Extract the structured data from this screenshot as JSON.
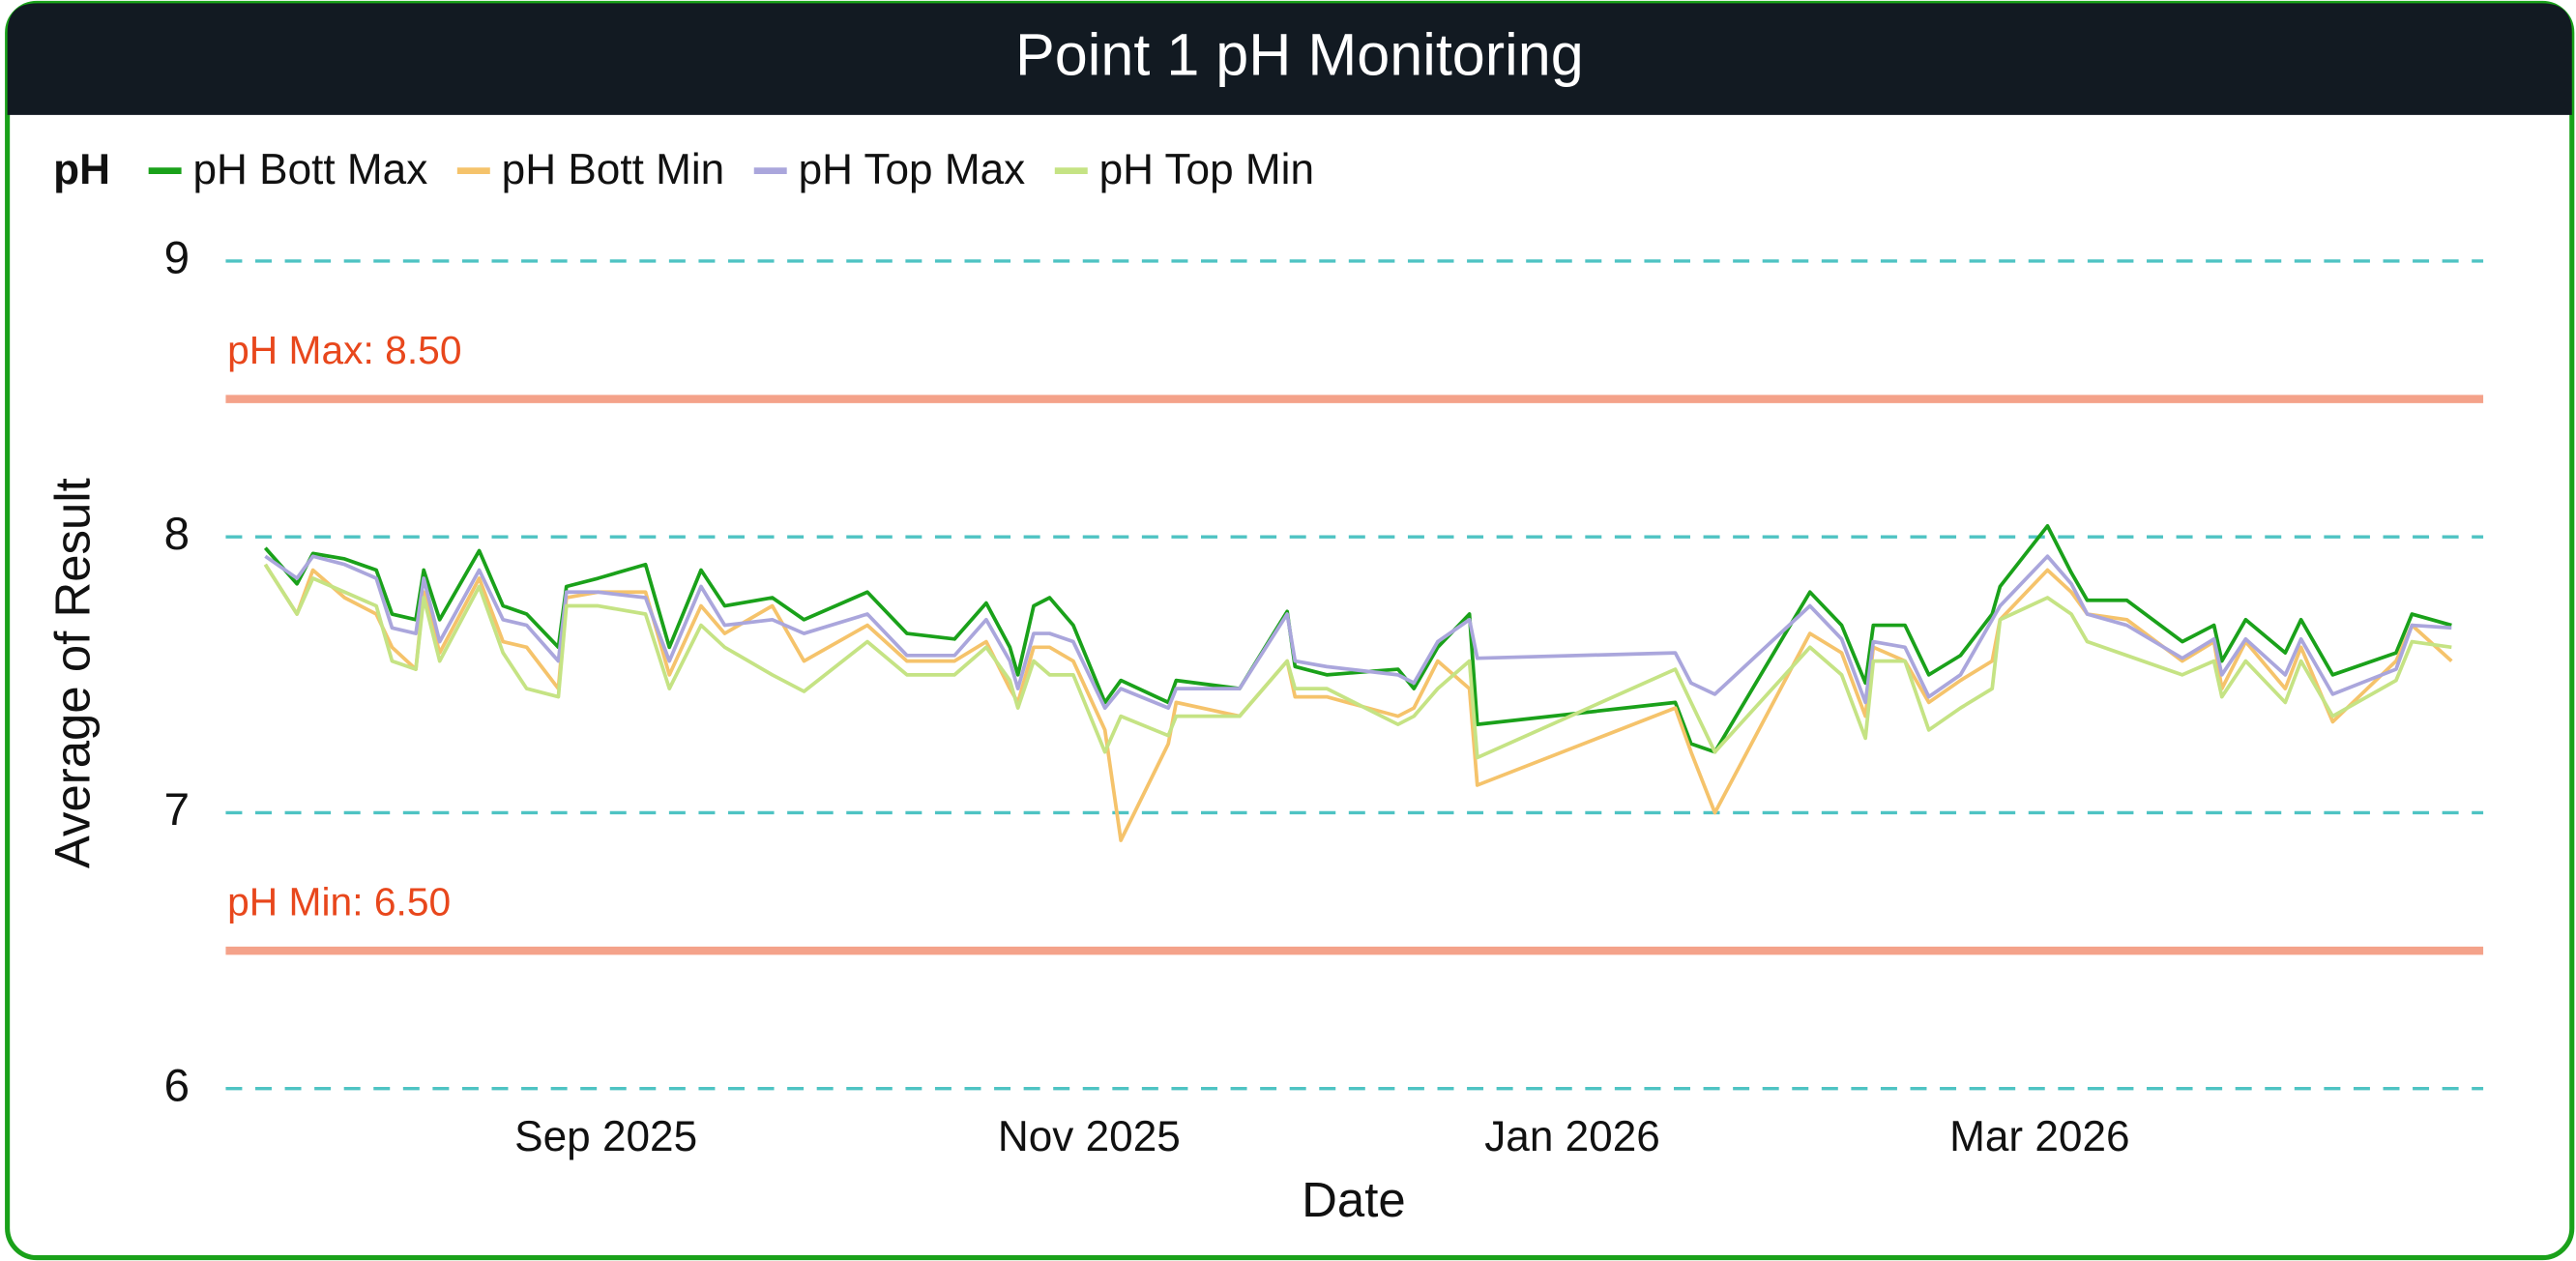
{
  "chart_data": {
    "type": "line",
    "title": "Point 1 pH Monitoring",
    "legend_title": "pH",
    "x_label": "Date",
    "y_label": "Average of Result",
    "xlim": [
      -48,
      237
    ],
    "xticks": [
      {
        "value": 0,
        "label": "Sep 2025"
      },
      {
        "value": 61,
        "label": "Nov 2025"
      },
      {
        "value": 122,
        "label": "Jan 2026"
      },
      {
        "value": 181,
        "label": "Mar 2026"
      }
    ],
    "ylim": [
      6,
      9
    ],
    "yticks": [
      6,
      7,
      8,
      9
    ],
    "grid": true,
    "reference_lines": [
      {
        "label": "pH Max: 8.50",
        "value": 8.5,
        "color": "#f4a28a"
      },
      {
        "label": "pH Min: 6.50",
        "value": 6.5,
        "color": "#f4a28a"
      }
    ],
    "x": [
      -43,
      -39,
      -37,
      -33,
      -29,
      -27,
      -24,
      -23,
      -21,
      -16,
      -13,
      -10,
      -6,
      -5,
      -1,
      5,
      8,
      12,
      15,
      21,
      25,
      33,
      38,
      44,
      48,
      51,
      52,
      54,
      56,
      59,
      63,
      65,
      71,
      72,
      80,
      86,
      87,
      91,
      100,
      102,
      105,
      109,
      110,
      135,
      137,
      140,
      152,
      156,
      159,
      160,
      164,
      167,
      171,
      175,
      176,
      182,
      185,
      187,
      192,
      199,
      203,
      204,
      207,
      212,
      214,
      218,
      226,
      228,
      233
    ],
    "series": [
      {
        "name": "pH Bott Max",
        "color": "#1aa11a",
        "values": [
          7.96,
          7.83,
          7.94,
          7.92,
          7.88,
          7.72,
          7.7,
          7.88,
          7.7,
          7.95,
          7.75,
          7.72,
          7.6,
          7.82,
          7.85,
          7.9,
          7.6,
          7.88,
          7.75,
          7.78,
          7.7,
          7.8,
          7.65,
          7.63,
          7.76,
          7.6,
          7.5,
          7.75,
          7.78,
          7.68,
          7.4,
          7.48,
          7.4,
          7.48,
          7.45,
          7.73,
          7.53,
          7.5,
          7.52,
          7.45,
          7.6,
          7.72,
          7.32,
          7.4,
          7.25,
          7.22,
          7.8,
          7.68,
          7.47,
          7.68,
          7.68,
          7.5,
          7.57,
          7.72,
          7.82,
          8.04,
          7.87,
          7.77,
          7.77,
          7.62,
          7.68,
          7.55,
          7.7,
          7.58,
          7.7,
          7.5,
          7.58,
          7.72,
          7.68
        ]
      },
      {
        "name": "pH Bott Min",
        "color": "#f5c36b",
        "values": [
          7.9,
          7.72,
          7.88,
          7.78,
          7.72,
          7.6,
          7.52,
          7.8,
          7.58,
          7.85,
          7.62,
          7.6,
          7.45,
          7.78,
          7.8,
          7.8,
          7.5,
          7.75,
          7.65,
          7.75,
          7.55,
          7.68,
          7.55,
          7.55,
          7.62,
          7.45,
          7.4,
          7.6,
          7.6,
          7.55,
          7.3,
          6.9,
          7.25,
          7.4,
          7.35,
          7.55,
          7.42,
          7.42,
          7.35,
          7.38,
          7.55,
          7.45,
          7.1,
          7.38,
          7.22,
          7.0,
          7.65,
          7.58,
          7.35,
          7.6,
          7.55,
          7.4,
          7.48,
          7.55,
          7.7,
          7.88,
          7.8,
          7.72,
          7.7,
          7.55,
          7.62,
          7.45,
          7.62,
          7.45,
          7.6,
          7.33,
          7.55,
          7.68,
          7.55
        ]
      },
      {
        "name": "pH Top Max",
        "color": "#aaa6dc",
        "values": [
          7.93,
          7.85,
          7.93,
          7.9,
          7.85,
          7.67,
          7.65,
          7.85,
          7.62,
          7.88,
          7.7,
          7.68,
          7.55,
          7.8,
          7.8,
          7.78,
          7.55,
          7.82,
          7.68,
          7.7,
          7.65,
          7.72,
          7.57,
          7.57,
          7.7,
          7.55,
          7.45,
          7.65,
          7.65,
          7.62,
          7.38,
          7.45,
          7.38,
          7.45,
          7.45,
          7.72,
          7.55,
          7.53,
          7.5,
          7.47,
          7.62,
          7.7,
          7.56,
          7.58,
          7.47,
          7.43,
          7.75,
          7.63,
          7.4,
          7.62,
          7.6,
          7.42,
          7.5,
          7.7,
          7.75,
          7.93,
          7.83,
          7.72,
          7.68,
          7.56,
          7.63,
          7.5,
          7.63,
          7.5,
          7.63,
          7.43,
          7.52,
          7.68,
          7.67
        ]
      },
      {
        "name": "pH Top Min",
        "color": "#c5e384",
        "values": [
          7.9,
          7.72,
          7.85,
          7.8,
          7.75,
          7.55,
          7.52,
          7.78,
          7.55,
          7.82,
          7.58,
          7.45,
          7.42,
          7.75,
          7.75,
          7.72,
          7.45,
          7.68,
          7.6,
          7.5,
          7.44,
          7.62,
          7.5,
          7.5,
          7.6,
          7.48,
          7.38,
          7.55,
          7.5,
          7.5,
          7.22,
          7.35,
          7.28,
          7.35,
          7.35,
          7.55,
          7.45,
          7.45,
          7.32,
          7.35,
          7.45,
          7.55,
          7.2,
          7.52,
          7.4,
          7.22,
          7.6,
          7.5,
          7.27,
          7.55,
          7.55,
          7.3,
          7.38,
          7.45,
          7.7,
          7.78,
          7.72,
          7.62,
          7.57,
          7.5,
          7.55,
          7.42,
          7.55,
          7.4,
          7.55,
          7.35,
          7.48,
          7.62,
          7.6
        ]
      }
    ]
  }
}
